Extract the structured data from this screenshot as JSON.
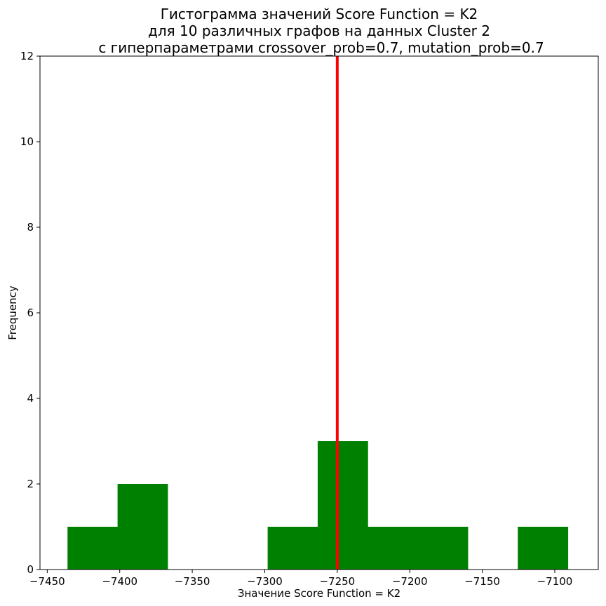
{
  "chart_data": {
    "type": "bar",
    "title_lines": [
      "Гистограмма значений Score Function = K2",
      "для 10 различных графов на данных Cluster 2",
      "с гиперпараметрами crossover_prob=0.7, mutation_prob=0.7"
    ],
    "xlabel": "Значение Score Function = K2",
    "ylabel": "Frequency",
    "xlim": [
      -7455,
      -7070
    ],
    "ylim": [
      0,
      12
    ],
    "x_ticks": [
      -7450,
      -7400,
      -7350,
      -7300,
      -7250,
      -7200,
      -7150,
      -7100
    ],
    "x_tick_labels": [
      "−7450",
      "−7400",
      "−7350",
      "−7300",
      "−7250",
      "−7200",
      "−7150",
      "−7100"
    ],
    "y_ticks": [
      0,
      2,
      4,
      6,
      8,
      10,
      12
    ],
    "y_tick_labels": [
      "0",
      "2",
      "4",
      "6",
      "8",
      "10",
      "12"
    ],
    "bins": [
      {
        "start": -7436,
        "end": -7401.5,
        "count": 1
      },
      {
        "start": -7401.5,
        "end": -7367,
        "count": 2
      },
      {
        "start": -7367,
        "end": -7332.5,
        "count": 0
      },
      {
        "start": -7332.5,
        "end": -7298,
        "count": 0
      },
      {
        "start": -7298,
        "end": -7263.5,
        "count": 1
      },
      {
        "start": -7263.5,
        "end": -7229,
        "count": 3
      },
      {
        "start": -7229,
        "end": -7194.5,
        "count": 1
      },
      {
        "start": -7194.5,
        "end": -7160,
        "count": 1
      },
      {
        "start": -7160,
        "end": -7125.5,
        "count": 0
      },
      {
        "start": -7125.5,
        "end": -7091,
        "count": 1
      }
    ],
    "reference_line": {
      "x": -7250
    },
    "bar_color": "#008000",
    "line_color": "#ff0000",
    "grid": false,
    "legend": "none"
  }
}
